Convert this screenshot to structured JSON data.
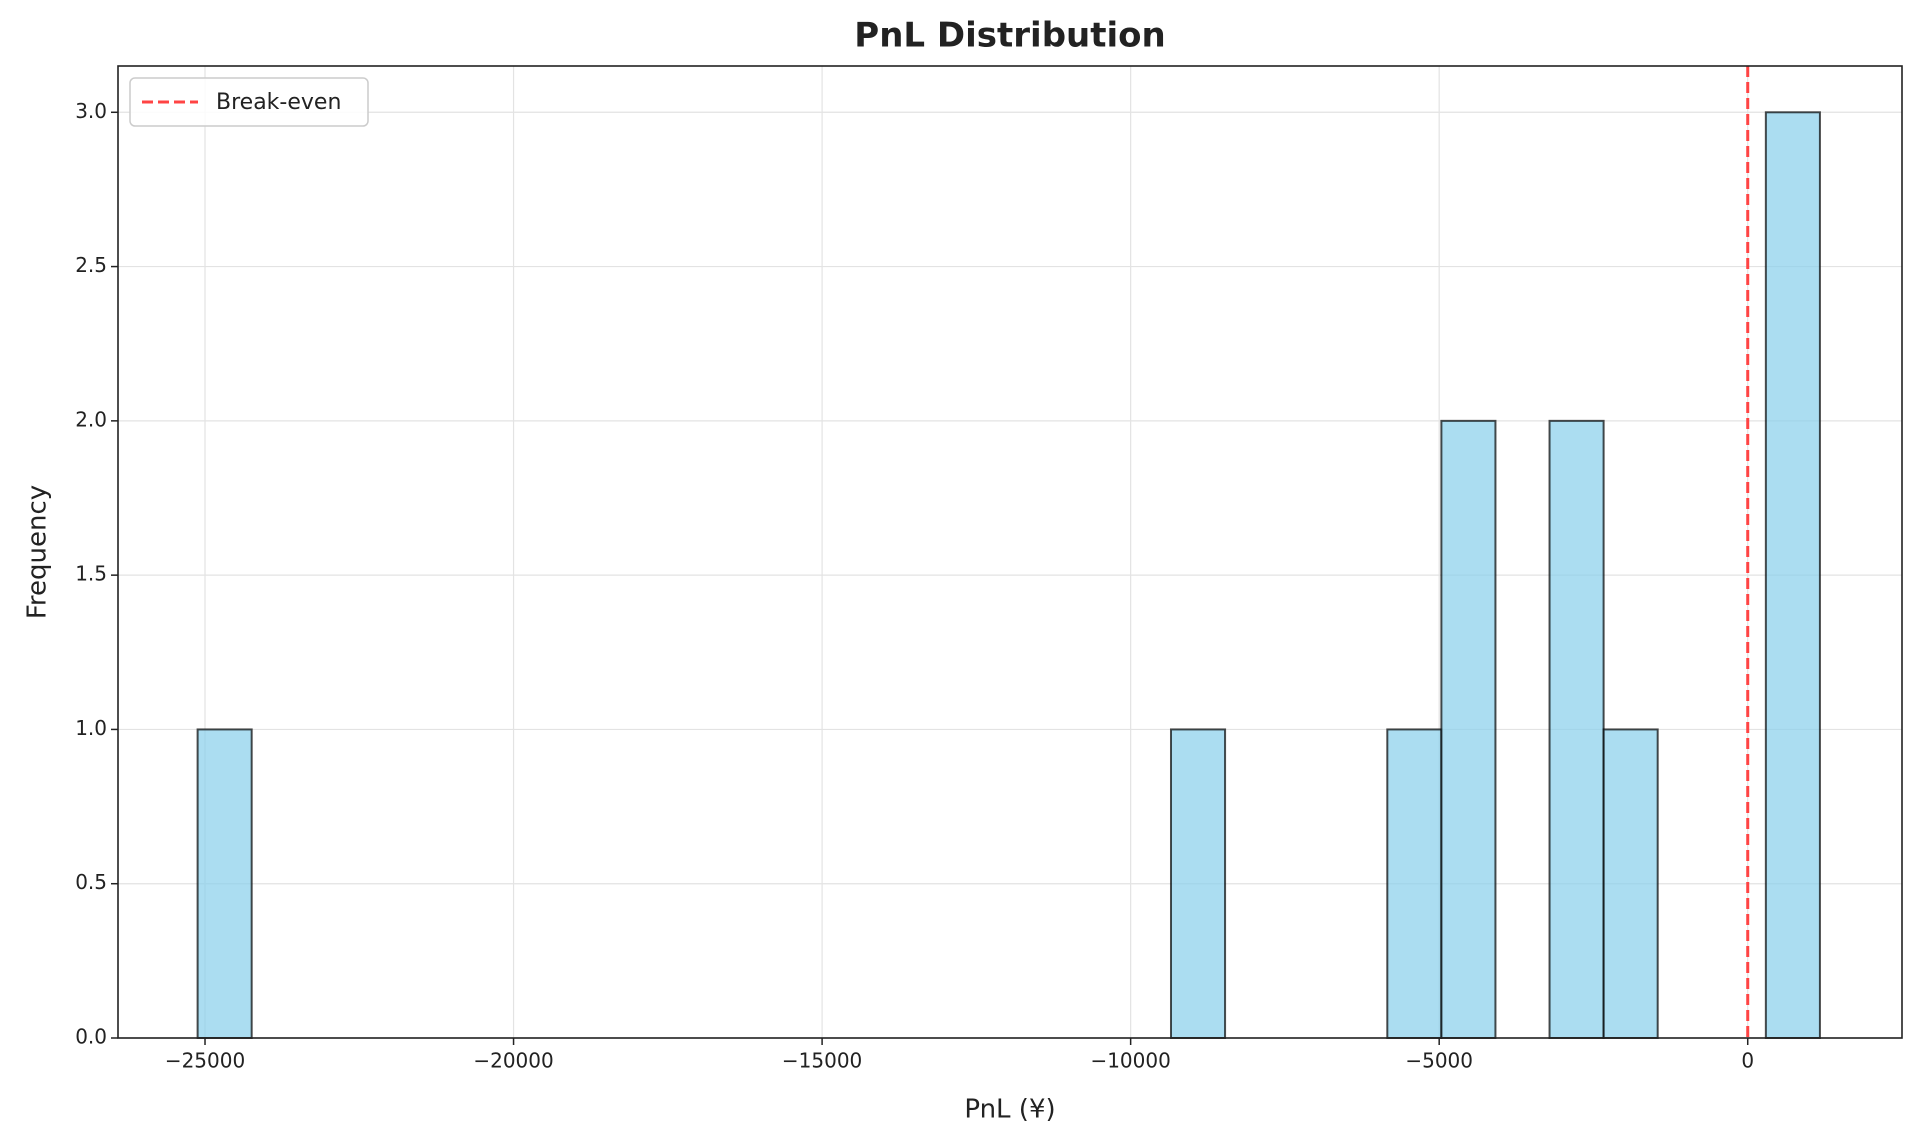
{
  "chart_data": {
    "type": "histogram",
    "title": "PnL Distribution",
    "x_label": "PnL (¥)",
    "y_label": "Frequency",
    "bins": [
      -25120.0,
      -24243.7,
      -23367.3,
      -22491.0,
      -21614.7,
      -20738.4,
      -19862.0,
      -18985.7,
      -18109.4,
      -17233.0,
      -16356.7,
      -15480.4,
      -14604.0,
      -13727.7,
      -12851.4,
      -11975.1,
      -11098.7,
      -10222.4,
      -9346.1,
      -8469.7,
      -7593.4,
      -6717.1,
      -5840.7,
      -4964.4,
      -4088.1,
      -3211.7,
      -2335.4,
      -1459.1,
      -582.8,
      293.6,
      1169.9
    ],
    "counts": [
      1,
      0,
      0,
      0,
      0,
      0,
      0,
      0,
      0,
      0,
      0,
      0,
      0,
      0,
      0,
      0,
      0,
      0,
      1,
      0,
      0,
      0,
      1,
      2,
      0,
      2,
      1,
      0,
      0,
      3
    ],
    "color": "#87ceeb",
    "xlim": [
      -26410,
      2500
    ],
    "ylim": [
      0,
      3.15
    ],
    "xticks": [
      {
        "value": -25000,
        "label": "−25000"
      },
      {
        "value": -20000,
        "label": "−20000"
      },
      {
        "value": -15000,
        "label": "−15000"
      },
      {
        "value": -10000,
        "label": "−10000"
      },
      {
        "value": -5000,
        "label": "−5000"
      },
      0
    ],
    "yticks": [
      {
        "value": 0,
        "label": "0.0"
      },
      0.5,
      {
        "value": 1,
        "label": "1.0"
      },
      1.5,
      {
        "value": 2,
        "label": "2.0"
      },
      2.5,
      {
        "value": 3,
        "label": "3.0"
      }
    ],
    "grid": true,
    "reference_line": {
      "value": 0,
      "label": "Break-even",
      "color": "#ff4444"
    },
    "legend_position": "upper left"
  }
}
